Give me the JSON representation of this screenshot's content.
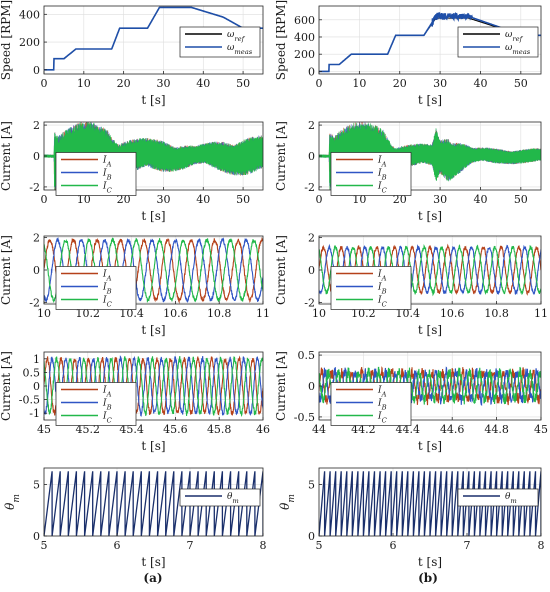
{
  "panel_labels": [
    "(a)",
    "(b)"
  ],
  "colors": {
    "ref": "#000000",
    "meas": "#1f4fa8",
    "IA": "#b5411a",
    "IB": "#2f55c4",
    "IC": "#22b84a",
    "theta": "#1a2f6b"
  },
  "chart_data": [
    {
      "id": "a1",
      "type": "line",
      "xlabel": "t [s]",
      "ylabel": "Speed [RPM]",
      "xlim": [
        0,
        55
      ],
      "ylim": [
        -30,
        460
      ],
      "xticks": [
        0,
        10,
        20,
        30,
        40,
        50
      ],
      "yticks": [
        0,
        200,
        400
      ],
      "legend": "top-right",
      "series": [
        {
          "name": "ω_ref",
          "kind": "ref",
          "x": [
            0,
            2.5,
            2.5,
            5,
            8,
            12,
            17,
            19,
            26,
            29,
            37,
            45,
            50,
            55
          ],
          "y": [
            0,
            0,
            80,
            80,
            150,
            150,
            150,
            300,
            300,
            450,
            450,
            380,
            300,
            300
          ]
        },
        {
          "name": "ω_meas",
          "kind": "meas",
          "x": [
            0,
            2.5,
            2.5,
            5,
            8,
            12,
            17,
            19,
            26,
            29,
            37,
            45,
            50,
            55
          ],
          "y": [
            0,
            0,
            80,
            80,
            150,
            150,
            150,
            300,
            300,
            450,
            450,
            380,
            300,
            300
          ]
        }
      ]
    },
    {
      "id": "b1",
      "type": "line",
      "xlabel": "t [s]",
      "ylabel": "Speed [RPM]",
      "xlim": [
        0,
        55
      ],
      "ylim": [
        -30,
        760
      ],
      "xticks": [
        0,
        10,
        20,
        30,
        40,
        50
      ],
      "yticks": [
        0,
        200,
        400,
        600
      ],
      "legend": "top-right",
      "series": [
        {
          "name": "ω_ref",
          "kind": "ref",
          "x": [
            0,
            2.5,
            2.5,
            5,
            8,
            12,
            17,
            19,
            26,
            29,
            37,
            45,
            50,
            55
          ],
          "y": [
            0,
            0,
            80,
            80,
            200,
            200,
            200,
            420,
            420,
            620,
            620,
            500,
            420,
            420
          ]
        },
        {
          "name": "ω_meas",
          "kind": "meas",
          "x": [
            0,
            2.5,
            2.5,
            5,
            8,
            12,
            17,
            19,
            26,
            29,
            37,
            45,
            50,
            55
          ],
          "y": [
            0,
            0,
            80,
            80,
            200,
            200,
            200,
            420,
            420,
            640,
            640,
            510,
            420,
            420
          ],
          "noise": {
            "from": 28,
            "to": 38,
            "amp": 50
          }
        }
      ]
    },
    {
      "id": "a2",
      "type": "area",
      "xlabel": "t [s]",
      "ylabel": "Current [A]",
      "xlim": [
        0,
        55
      ],
      "ylim": [
        -2.2,
        2.2
      ],
      "xticks": [
        0,
        10,
        20,
        30,
        40,
        50
      ],
      "yticks": [
        -2,
        0,
        2
      ],
      "legend": "center-left",
      "series": [
        {
          "name": "I_A"
        },
        {
          "name": "I_B"
        },
        {
          "name": "I_C"
        }
      ],
      "envelope": [
        [
          0,
          0.1
        ],
        [
          2.5,
          0.1
        ],
        [
          2.6,
          2.1
        ],
        [
          16,
          1.9
        ],
        [
          19,
          1.1
        ],
        [
          30,
          1.0
        ],
        [
          35,
          0.8
        ],
        [
          38,
          0.6
        ],
        [
          45,
          1.0
        ],
        [
          50,
          1.2
        ],
        [
          55,
          1.2
        ]
      ]
    },
    {
      "id": "b2",
      "type": "area",
      "xlabel": "t [s]",
      "ylabel": "Current [A]",
      "xlim": [
        0,
        55
      ],
      "ylim": [
        -2.2,
        2.2
      ],
      "xticks": [
        0,
        10,
        20,
        30,
        40,
        50
      ],
      "yticks": [
        -2,
        0,
        2
      ],
      "legend": "center-left",
      "series": [
        {
          "name": "I_A"
        },
        {
          "name": "I_B"
        },
        {
          "name": "I_C"
        }
      ],
      "envelope": [
        [
          0,
          0.1
        ],
        [
          2.5,
          0.1
        ],
        [
          2.6,
          2.1
        ],
        [
          16,
          1.9
        ],
        [
          19,
          0.75
        ],
        [
          28,
          0.7
        ],
        [
          29,
          1.8
        ],
        [
          30,
          1.1
        ],
        [
          32,
          1.5
        ],
        [
          35,
          1.0
        ],
        [
          38,
          0.5
        ],
        [
          55,
          0.45
        ]
      ]
    },
    {
      "id": "a3",
      "type": "line",
      "xlabel": "t [s]",
      "ylabel": "Current [A]",
      "xlim": [
        10,
        11
      ],
      "ylim": [
        -2.1,
        2.1
      ],
      "xticks": [
        10,
        10.2,
        10.4,
        10.6,
        10.8,
        11
      ],
      "yticks": [
        -2,
        0,
        2
      ],
      "legend": "center-left",
      "series": [
        {
          "name": "I_A"
        },
        {
          "name": "I_B"
        },
        {
          "name": "I_C"
        }
      ],
      "amplitude": 1.85,
      "cycles": 9.3,
      "noise": 0.12
    },
    {
      "id": "b3",
      "type": "line",
      "xlabel": "t [s]",
      "ylabel": "Current [A]",
      "xlim": [
        10,
        11
      ],
      "ylim": [
        -2.1,
        2.1
      ],
      "xticks": [
        10,
        10.2,
        10.4,
        10.6,
        10.8,
        11
      ],
      "yticks": [
        -2,
        0,
        2
      ],
      "legend": "center-left",
      "series": [
        {
          "name": "I_A"
        },
        {
          "name": "I_B"
        },
        {
          "name": "I_C"
        }
      ],
      "amplitude": 1.4,
      "cycles": 12.5,
      "noise": 0.12
    },
    {
      "id": "a4",
      "type": "line",
      "xlabel": "t [s]",
      "ylabel": "Current [A]",
      "xlim": [
        45,
        46
      ],
      "ylim": [
        -1.25,
        1.25
      ],
      "xticks": [
        45,
        45.2,
        45.4,
        45.6,
        45.8,
        46
      ],
      "yticks": [
        -1,
        -0.5,
        0,
        0.5,
        1
      ],
      "legend": "center-left",
      "series": [
        {
          "name": "I_A"
        },
        {
          "name": "I_B"
        },
        {
          "name": "I_C"
        }
      ],
      "amplitude": 1.0,
      "cycles": 16,
      "noise": 0.1
    },
    {
      "id": "b4",
      "type": "line",
      "xlabel": "t [s]",
      "ylabel": "Current [A]",
      "xlim": [
        44,
        45
      ],
      "ylim": [
        -0.55,
        0.55
      ],
      "xticks": [
        44,
        44.2,
        44.4,
        44.6,
        44.8,
        45
      ],
      "yticks": [
        -0.5,
        0,
        0.5
      ],
      "legend": "center-left",
      "series": [
        {
          "name": "I_A"
        },
        {
          "name": "I_B"
        },
        {
          "name": "I_C"
        }
      ],
      "amplitude": 0.22,
      "cycles": 22,
      "noise": 0.09
    },
    {
      "id": "a5",
      "type": "line",
      "xlabel": "t [s]",
      "ylabel": "θ_m",
      "xlim": [
        5,
        8
      ],
      "ylim": [
        0,
        6.6
      ],
      "xticks": [
        5,
        6,
        7,
        8
      ],
      "yticks": [
        0,
        5
      ],
      "legend": "top-right",
      "series": [
        {
          "name": "θ_m",
          "kind": "theta",
          "teeth": 27,
          "max": 6.28
        }
      ]
    },
    {
      "id": "b5",
      "type": "line",
      "xlabel": "t [s]",
      "ylabel": "θ_m",
      "xlim": [
        5,
        8
      ],
      "ylim": [
        0,
        6.6
      ],
      "xticks": [
        5,
        6,
        7,
        8
      ],
      "yticks": [
        0,
        5
      ],
      "legend": "top-right",
      "series": [
        {
          "name": "θ_m",
          "kind": "theta",
          "teeth": 40,
          "max": 6.28
        }
      ]
    }
  ]
}
